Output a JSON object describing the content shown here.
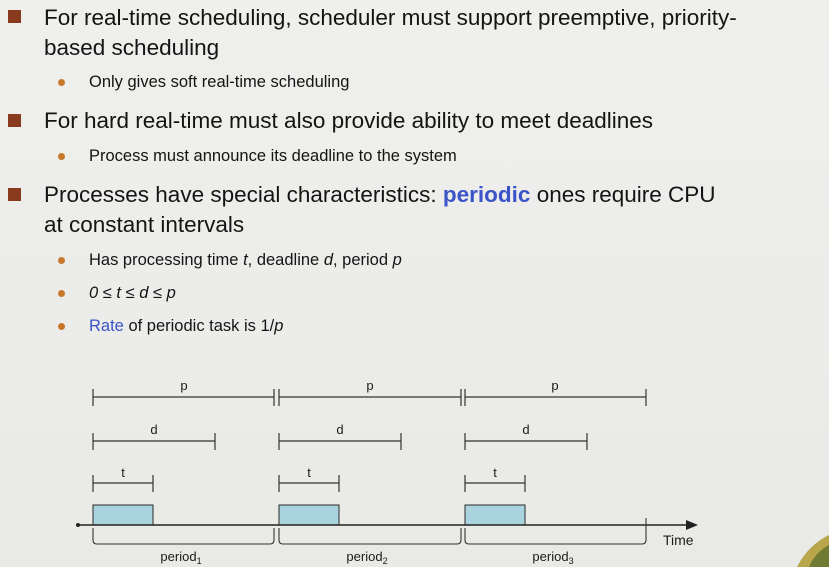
{
  "bullets": [
    {
      "line1": "For real-time scheduling, scheduler must support preemptive, priority-",
      "line2": "based scheduling",
      "subs": [
        "Only gives soft real-time scheduling"
      ]
    },
    {
      "line1": "For hard real-time must also provide ability to meet deadlines",
      "subs": [
        "Process must announce its deadline to the system"
      ]
    },
    {
      "line1_pre": "Processes have special characteristics: ",
      "line1_hl": "periodic",
      "line1_post": " ones require CPU",
      "line2": "at constant intervals",
      "sub1": {
        "pre": "Has processing time ",
        "t": "t",
        "mid1": ", deadline ",
        "d": "d",
        "mid2": ", period ",
        "p": "p"
      },
      "sub2": {
        "text": "0 ≤ t ≤ d ≤ p"
      },
      "sub3": {
        "hl": "Rate",
        "post": " of periodic task is 1/",
        "p": "p"
      }
    }
  ],
  "diagram": {
    "p_label": "p",
    "d_label": "d",
    "t_label": "t",
    "time_label": "Time",
    "period_base": "period",
    "periods": [
      "1",
      "2",
      "3"
    ]
  },
  "colors": {
    "square_bullet": "#8a3b1e",
    "dot_bullet": "#c8782a",
    "highlight": "#3b54c8",
    "bar_fill": "#a9d3dd"
  }
}
